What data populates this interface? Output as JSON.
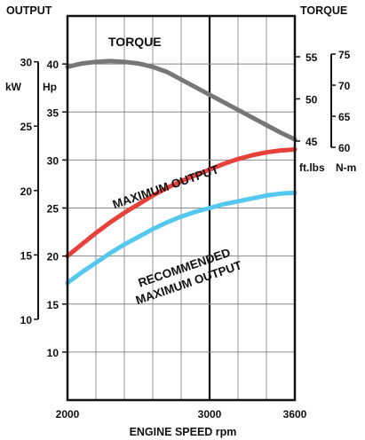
{
  "chart_data": {
    "type": "line",
    "labels": {
      "output_title": "OUTPUT",
      "torque_title": "TORQUE",
      "kw_unit": "kW",
      "hp_unit": "Hp",
      "ftlbs_unit": "ft.lbs",
      "nm_unit": "N-m",
      "xlabel": "ENGINE SPEED  rpm"
    },
    "x_ticks": [
      2000,
      3000,
      3600
    ],
    "x_range": [
      2000,
      3600
    ],
    "hp_range": [
      5,
      45
    ],
    "hp_ticks": [
      10,
      15,
      20,
      25,
      30,
      35,
      40
    ],
    "kw_ticks": [
      10,
      15,
      20,
      25,
      30
    ],
    "ftlbs_ticks": [
      45,
      50,
      55
    ],
    "nm_ticks": [
      60,
      65,
      70,
      75
    ],
    "series": [
      {
        "name": "TORQUE",
        "axis": "torque_ftlbs",
        "color": "#777777",
        "x": [
          2000,
          2100,
          2200,
          2300,
          2400,
          2500,
          2600,
          2700,
          2800,
          2900,
          3000,
          3100,
          3200,
          3300,
          3400,
          3500,
          3600
        ],
        "y": [
          53.8,
          54.2,
          54.4,
          54.5,
          54.4,
          54.2,
          53.8,
          53.2,
          52.3,
          51.4,
          50.5,
          49.6,
          48.7,
          47.8,
          46.9,
          46.0,
          45.2
        ]
      },
      {
        "name": "MAXIMUM  OUTPUT",
        "axis": "output_hp",
        "color": "#e8403a",
        "x": [
          2000,
          2100,
          2200,
          2300,
          2400,
          2500,
          2600,
          2700,
          2800,
          2900,
          3000,
          3100,
          3200,
          3300,
          3400,
          3500,
          3600
        ],
        "y": [
          20.0,
          21.2,
          22.4,
          23.5,
          24.5,
          25.4,
          26.3,
          27.1,
          27.8,
          28.4,
          29.0,
          29.6,
          30.1,
          30.5,
          30.8,
          31.0,
          31.1
        ]
      },
      {
        "name": "RECOMMENDED\nMAXIMUM  OUTPUT",
        "axis": "output_hp",
        "color": "#55c8f0",
        "x": [
          2000,
          2100,
          2200,
          2300,
          2400,
          2500,
          2600,
          2700,
          2800,
          2900,
          3000,
          3100,
          3200,
          3300,
          3400,
          3500,
          3600
        ],
        "y": [
          17.2,
          18.3,
          19.3,
          20.3,
          21.2,
          22.0,
          22.8,
          23.5,
          24.1,
          24.6,
          25.0,
          25.4,
          25.7,
          26.0,
          26.3,
          26.5,
          26.6
        ]
      }
    ],
    "in_chart_labels": {
      "torque": "TORQUE",
      "max_output": "MAXIMUM  OUTPUT",
      "rec_line1": "RECOMMENDED",
      "rec_line2": "MAXIMUM  OUTPUT"
    }
  }
}
